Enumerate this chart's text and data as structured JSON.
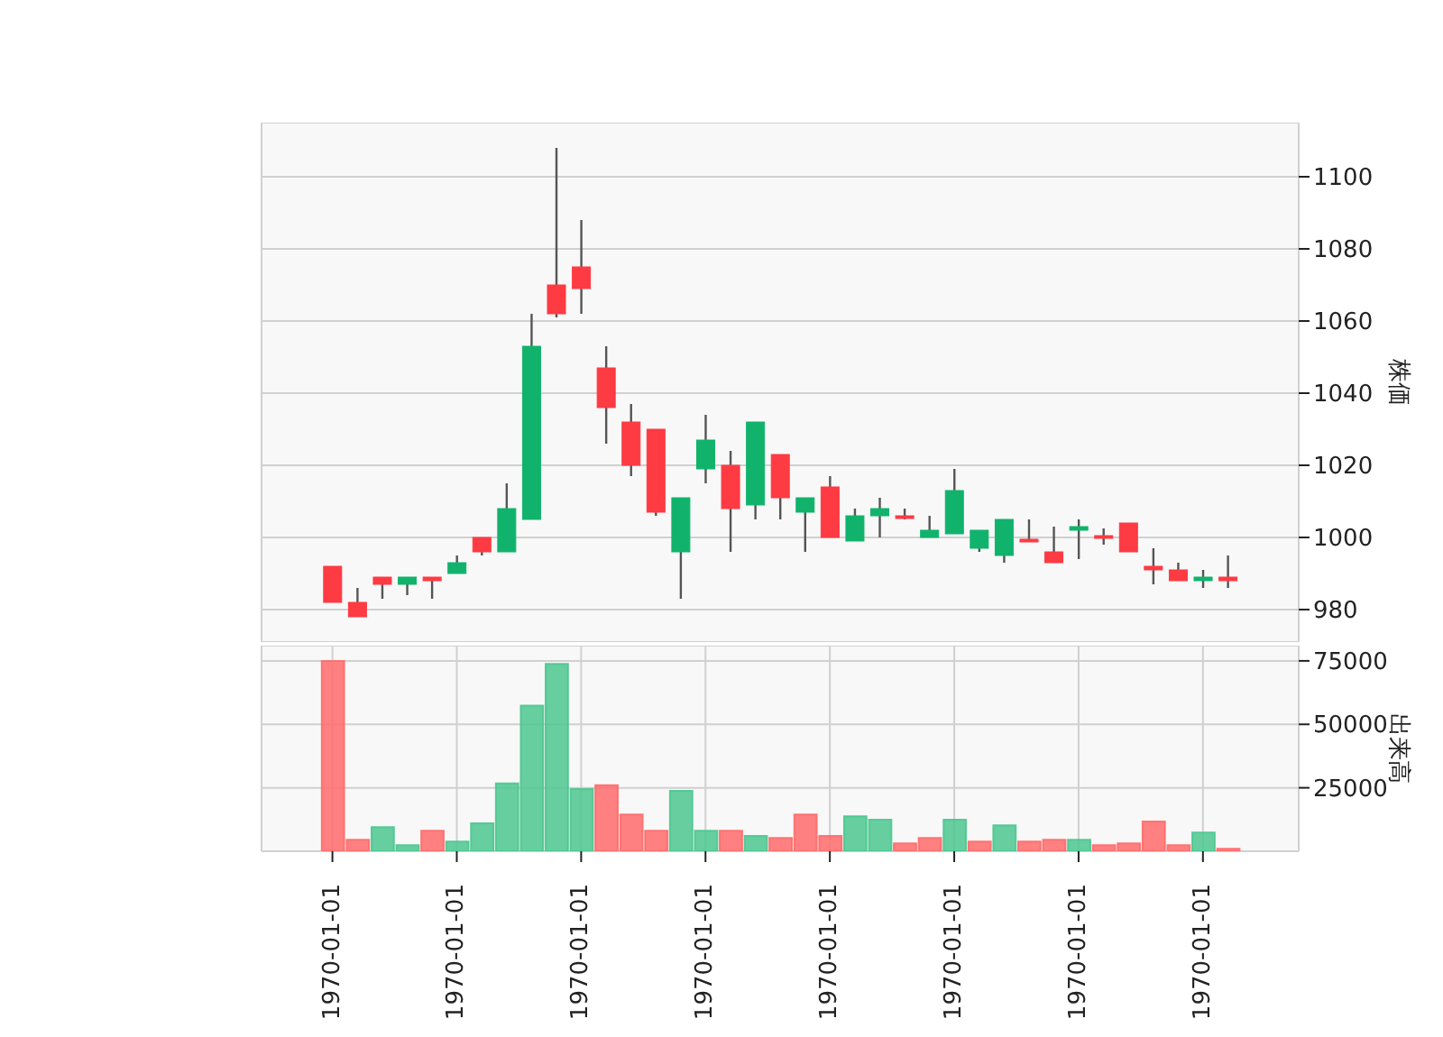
{
  "chart_data": [
    {
      "type": "candlestick",
      "ylabel": "株価",
      "grid": true,
      "tick_labels": "y",
      "categories": [
        "1970-01-01",
        null,
        null,
        null,
        null,
        "1970-01-01",
        null,
        null,
        null,
        null,
        "1970-01-01",
        null,
        null,
        null,
        null,
        "1970-01-01",
        null,
        null,
        null,
        null,
        "1970-01-01",
        null,
        null,
        null,
        null,
        "1970-01-01",
        null,
        null,
        null,
        null,
        "1970-01-01",
        null,
        null,
        null,
        null,
        "1970-01-01",
        null
      ],
      "ohlc": [
        [
          992,
          992,
          982,
          982
        ],
        [
          982,
          986,
          978,
          978
        ],
        [
          989,
          989,
          983,
          987
        ],
        [
          987,
          989,
          984,
          989
        ],
        [
          989,
          989,
          983,
          988
        ],
        [
          990,
          995,
          990,
          993
        ],
        [
          1000,
          1000,
          995,
          996
        ],
        [
          996,
          1015,
          996,
          1008
        ],
        [
          1005,
          1062,
          1005,
          1053
        ],
        [
          1070,
          1108,
          1061,
          1062
        ],
        [
          1075,
          1088,
          1062,
          1069
        ],
        [
          1047,
          1053,
          1026,
          1036
        ],
        [
          1032,
          1037,
          1017,
          1020
        ],
        [
          1030,
          1030,
          1006,
          1007
        ],
        [
          996,
          1011,
          983,
          1011
        ],
        [
          1019,
          1034,
          1015,
          1027
        ],
        [
          1020,
          1024,
          996,
          1008
        ],
        [
          1009,
          1032,
          1005,
          1032
        ],
        [
          1023,
          1023,
          1005,
          1011
        ],
        [
          1007,
          1011,
          996,
          1011
        ],
        [
          1014,
          1017,
          1000,
          1000
        ],
        [
          999,
          1008,
          999,
          1006
        ],
        [
          1006,
          1011,
          1000,
          1008
        ],
        [
          1006,
          1008,
          1005,
          1005.5
        ],
        [
          1000,
          1006,
          1000,
          1002
        ],
        [
          1001,
          1019,
          1001,
          1013
        ],
        [
          997,
          1002,
          996,
          1002
        ],
        [
          995,
          1005,
          993,
          1005
        ],
        [
          999.5,
          1005,
          999,
          999
        ],
        [
          996,
          1003,
          993,
          993
        ],
        [
          1002,
          1005,
          994,
          1003
        ],
        [
          1000.5,
          1002.5,
          998,
          1000
        ],
        [
          1004,
          1004,
          996,
          996
        ],
        [
          992,
          997,
          987,
          991
        ],
        [
          991,
          993,
          988,
          988
        ],
        [
          988,
          991,
          986,
          989
        ],
        [
          989,
          995,
          986,
          988
        ]
      ],
      "colors": [
        "#fe3a43",
        "#fe3a43",
        "#fe3a43",
        "#11b36c",
        "#fe3a43",
        "#11b36c",
        "#fe3a43",
        "#11b36c",
        "#11b36c",
        "#fe3a43",
        "#fe3a43",
        "#fe3a43",
        "#fe3a43",
        "#fe3a43",
        "#11b36c",
        "#11b36c",
        "#fe3a43",
        "#11b36c",
        "#fe3a43",
        "#11b36c",
        "#fe3a43",
        "#11b36c",
        "#11b36c",
        "#fe3a43",
        "#11b36c",
        "#11b36c",
        "#11b36c",
        "#11b36c",
        "#fe3a43",
        "#fe3a43",
        "#11b36c",
        "#fe3a43",
        "#fe3a43",
        "#fe3a43",
        "#fe3a43",
        "#11b36c",
        "#fe3a43"
      ],
      "ylim": [
        971,
        1115
      ],
      "yticks": [
        980,
        1000,
        1020,
        1040,
        1060,
        1080,
        1100
      ]
    },
    {
      "type": "bar",
      "ylabel": "出来高",
      "grid": true,
      "categories": [
        "1970-01-01",
        null,
        null,
        null,
        null,
        "1970-01-01",
        null,
        null,
        null,
        null,
        "1970-01-01",
        null,
        null,
        null,
        null,
        "1970-01-01",
        null,
        null,
        null,
        null,
        "1970-01-01",
        null,
        null,
        null,
        null,
        "1970-01-01",
        null,
        null,
        null,
        null,
        "1970-01-01",
        null,
        null,
        null,
        null,
        "1970-01-01",
        null
      ],
      "values": [
        75000,
        4500,
        9500,
        2400,
        8100,
        3800,
        11000,
        26700,
        57400,
        73800,
        24500,
        26000,
        14500,
        8100,
        23800,
        8100,
        8100,
        6000,
        5200,
        14500,
        6000,
        13800,
        12400,
        3100,
        5200,
        12400,
        3800,
        10200,
        3800,
        4500,
        4500,
        2400,
        3100,
        11700,
        2400,
        7400,
        1000
      ],
      "colors": [
        "#ff6b6b",
        "#ff6b6b",
        "#4dc790",
        "#4dc790",
        "#ff6b6b",
        "#4dc790",
        "#4dc790",
        "#4dc790",
        "#4dc790",
        "#4dc790",
        "#4dc790",
        "#ff6b6b",
        "#ff6b6b",
        "#ff6b6b",
        "#4dc790",
        "#4dc790",
        "#ff6b6b",
        "#4dc790",
        "#ff6b6b",
        "#ff6b6b",
        "#ff6b6b",
        "#4dc790",
        "#4dc790",
        "#ff6b6b",
        "#ff6b6b",
        "#4dc790",
        "#ff6b6b",
        "#4dc790",
        "#ff6b6b",
        "#ff6b6b",
        "#4dc790",
        "#ff6b6b",
        "#ff6b6b",
        "#ff6b6b",
        "#ff6b6b",
        "#4dc790",
        "#ff6b6b"
      ],
      "ylim": [
        0,
        81000
      ],
      "yticks": [
        25000,
        50000,
        75000
      ]
    }
  ]
}
